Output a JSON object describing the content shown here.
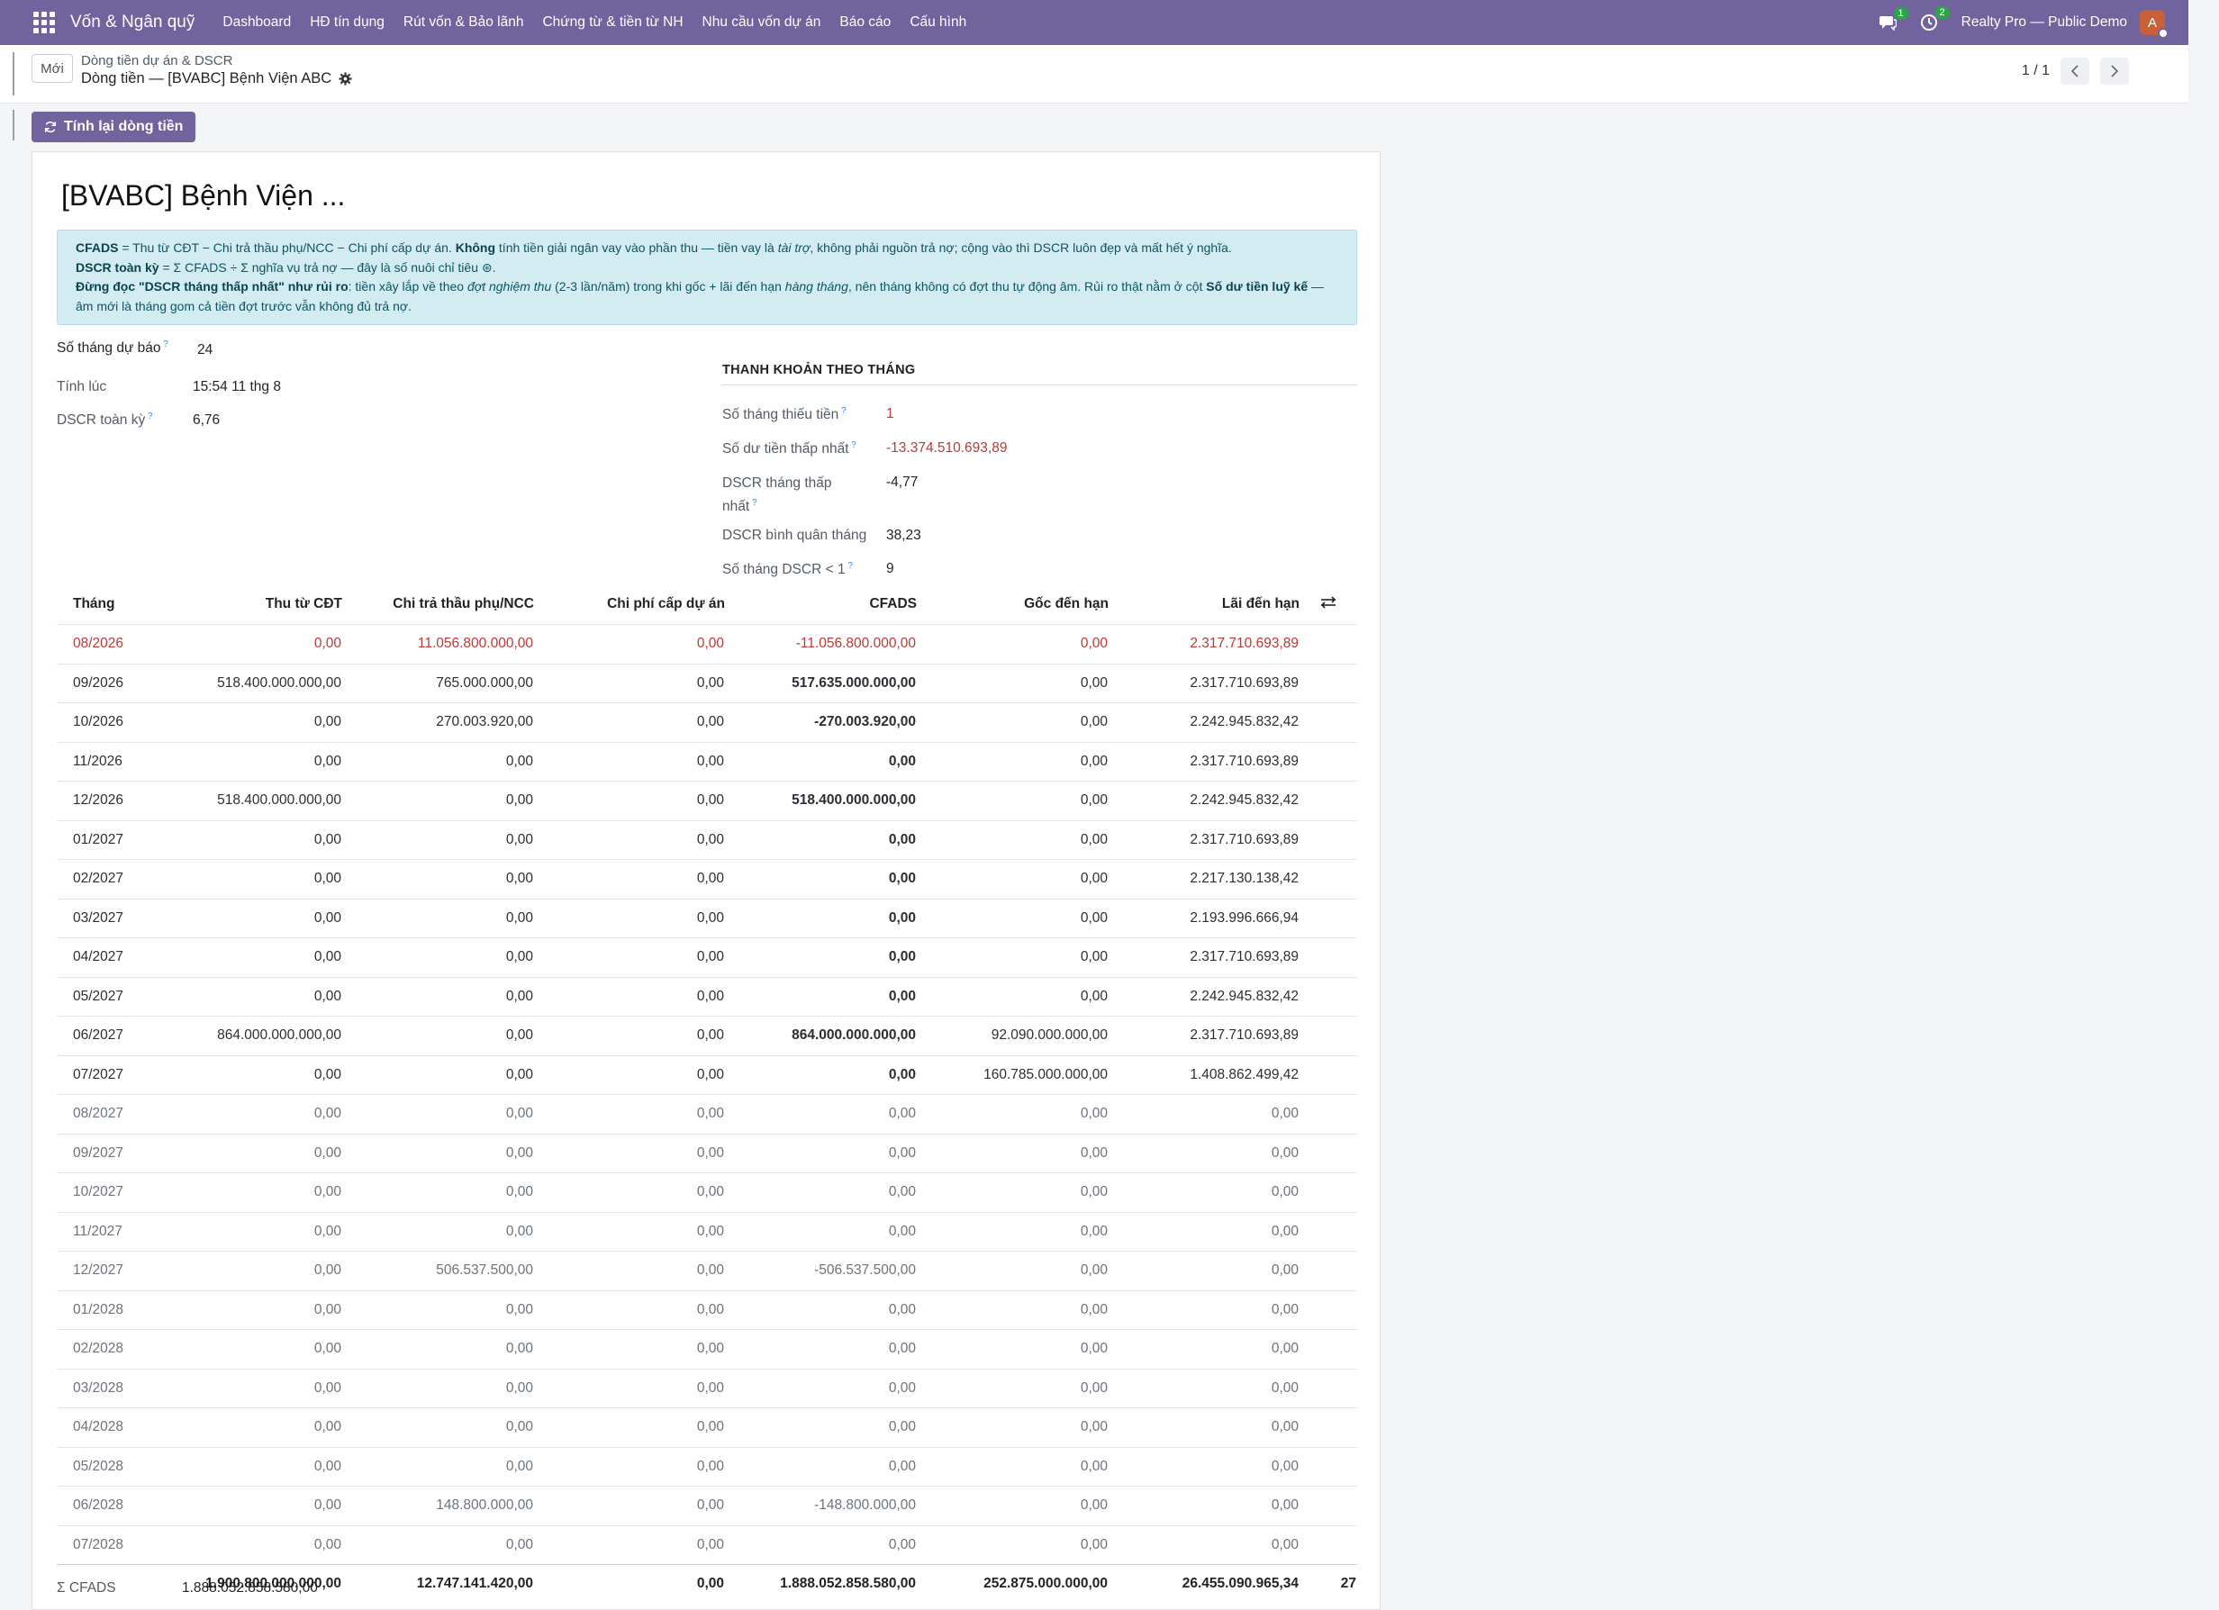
{
  "navbar": {
    "app_title": "Vốn & Ngân quỹ",
    "menu": [
      "Dashboard",
      "HĐ tín dụng",
      "Rút vốn & Bảo lãnh",
      "Chứng từ & tiền từ NH",
      "Nhu cầu vốn dự án",
      "Báo cáo",
      "Cấu hình"
    ],
    "messages_count": "1",
    "activities_count": "2",
    "company": "Realty Pro — Public Demo",
    "avatar_letter": "A",
    "accent": "#71639e"
  },
  "control": {
    "new_label": "Mới",
    "breadcrumb_parent": "Dòng tiền dự án & DSCR",
    "breadcrumb_current": "Dòng tiền — [BVABC] Bệnh Viện ABC",
    "pager": "1 / 1"
  },
  "actions": {
    "recalc_label": "Tính lại dòng tiền"
  },
  "record": {
    "title": "[BVABC] Bệnh Viện ...",
    "alert": {
      "l1_b1": "CFADS",
      "l1_t1": " = Thu từ CĐT − Chi trả thầu phụ/NCC − Chi phí cấp dự án. ",
      "l1_b2": "Không",
      "l1_t2": " tính tiền giải ngân vay vào phần thu — tiền vay là ",
      "l1_i1": "tài trợ",
      "l1_t3": ", không phải nguồn trả nợ; cộng vào thì DSCR luôn đẹp và mất hết ý nghĩa.",
      "l2_b1": "DSCR toàn kỳ",
      "l2_t1": " = Σ CFADS ÷ Σ nghĩa vụ trả nợ — đây là số nuôi chỉ tiêu ⊛.",
      "l3_b1": "Đừng đọc \"DSCR tháng thấp nhất\" như rủi ro",
      "l3_t1": ": tiền xây lắp về theo ",
      "l3_i1": "đợt nghiệm thu",
      "l3_t2": " (2-3 lần/năm) trong khi gốc + lãi đến hạn ",
      "l3_i2": "hàng tháng",
      "l3_t3": ", nên tháng không có đợt thu tự động âm. Rủi ro thật nằm ở cột ",
      "l3_b2": "Số dư tiền luỹ kế",
      "l3_t4": " — âm mới là tháng gom cả tiền đợt trước vẫn không đủ trả nợ."
    },
    "fields_left": {
      "forecast_months_label": "Số tháng dự báo",
      "forecast_months_value": "24",
      "computed_at_label": "Tính lúc",
      "computed_at_value": "15:54 11 thg 8",
      "dscr_total_label": "DSCR toàn kỳ",
      "dscr_total_value": "6,76"
    },
    "liquidity": {
      "section_title": "THANH KHOẢN THEO THÁNG",
      "shortfall_months_label": "Số tháng thiếu tiền",
      "shortfall_months_value": "1",
      "min_balance_label": "Số dư tiền thấp nhất",
      "min_balance_value": "-13.374.510.693,89",
      "min_dscr_label_1": "DSCR tháng thấp",
      "min_dscr_label_2": "nhất",
      "min_dscr_value": "-4,77",
      "avg_dscr_label": "DSCR bình quân tháng",
      "avg_dscr_value": "38,23",
      "dscr_below1_label": "Số tháng DSCR < 1",
      "dscr_below1_value": "9"
    },
    "table": {
      "headers": [
        "Tháng",
        "Thu từ CĐT",
        "Chi trả thầu phụ/NCC",
        "Chi phí cấp dự án",
        "CFADS",
        "Gốc đến hạn",
        "Lãi đến hạn"
      ],
      "rows": [
        [
          "08/2026",
          "0,00",
          "11.056.800.000,00",
          "0,00",
          "-11.056.800.000,00",
          "0,00",
          "2.317.710.693,89"
        ],
        [
          "09/2026",
          "518.400.000.000,00",
          "765.000.000,00",
          "0,00",
          "517.635.000.000,00",
          "0,00",
          "2.317.710.693,89"
        ],
        [
          "10/2026",
          "0,00",
          "270.003.920,00",
          "0,00",
          "-270.003.920,00",
          "0,00",
          "2.242.945.832,42"
        ],
        [
          "11/2026",
          "0,00",
          "0,00",
          "0,00",
          "0,00",
          "0,00",
          "2.317.710.693,89"
        ],
        [
          "12/2026",
          "518.400.000.000,00",
          "0,00",
          "0,00",
          "518.400.000.000,00",
          "0,00",
          "2.242.945.832,42"
        ],
        [
          "01/2027",
          "0,00",
          "0,00",
          "0,00",
          "0,00",
          "0,00",
          "2.317.710.693,89"
        ],
        [
          "02/2027",
          "0,00",
          "0,00",
          "0,00",
          "0,00",
          "0,00",
          "2.217.130.138,42"
        ],
        [
          "03/2027",
          "0,00",
          "0,00",
          "0,00",
          "0,00",
          "0,00",
          "2.193.996.666,94"
        ],
        [
          "04/2027",
          "0,00",
          "0,00",
          "0,00",
          "0,00",
          "0,00",
          "2.317.710.693,89"
        ],
        [
          "05/2027",
          "0,00",
          "0,00",
          "0,00",
          "0,00",
          "0,00",
          "2.242.945.832,42"
        ],
        [
          "06/2027",
          "864.000.000.000,00",
          "0,00",
          "0,00",
          "864.000.000.000,00",
          "92.090.000.000,00",
          "2.317.710.693,89"
        ],
        [
          "07/2027",
          "0,00",
          "0,00",
          "0,00",
          "0,00",
          "160.785.000.000,00",
          "1.408.862.499,42"
        ],
        [
          "08/2027",
          "0,00",
          "0,00",
          "0,00",
          "0,00",
          "0,00",
          "0,00"
        ],
        [
          "09/2027",
          "0,00",
          "0,00",
          "0,00",
          "0,00",
          "0,00",
          "0,00"
        ],
        [
          "10/2027",
          "0,00",
          "0,00",
          "0,00",
          "0,00",
          "0,00",
          "0,00"
        ],
        [
          "11/2027",
          "0,00",
          "0,00",
          "0,00",
          "0,00",
          "0,00",
          "0,00"
        ],
        [
          "12/2027",
          "0,00",
          "506.537.500,00",
          "0,00",
          "-506.537.500,00",
          "0,00",
          "0,00"
        ],
        [
          "01/2028",
          "0,00",
          "0,00",
          "0,00",
          "0,00",
          "0,00",
          "0,00"
        ],
        [
          "02/2028",
          "0,00",
          "0,00",
          "0,00",
          "0,00",
          "0,00",
          "0,00"
        ],
        [
          "03/2028",
          "0,00",
          "0,00",
          "0,00",
          "0,00",
          "0,00",
          "0,00"
        ],
        [
          "04/2028",
          "0,00",
          "0,00",
          "0,00",
          "0,00",
          "0,00",
          "0,00"
        ],
        [
          "05/2028",
          "0,00",
          "0,00",
          "0,00",
          "0,00",
          "0,00",
          "0,00"
        ],
        [
          "06/2028",
          "0,00",
          "148.800.000,00",
          "0,00",
          "-148.800.000,00",
          "0,00",
          "0,00"
        ],
        [
          "07/2028",
          "0,00",
          "0,00",
          "0,00",
          "0,00",
          "0,00",
          "0,00"
        ]
      ],
      "totals": [
        "",
        "1.900.800.000.000,00",
        "12.747.141.420,00",
        "0,00",
        "1.888.052.858.580,00",
        "252.875.000.000,00",
        "26.455.090.965,34"
      ],
      "totals_overflow": "27"
    },
    "sum_cfads_label": "Σ CFADS",
    "sum_cfads_value": "1.888.052.858.580,00"
  }
}
